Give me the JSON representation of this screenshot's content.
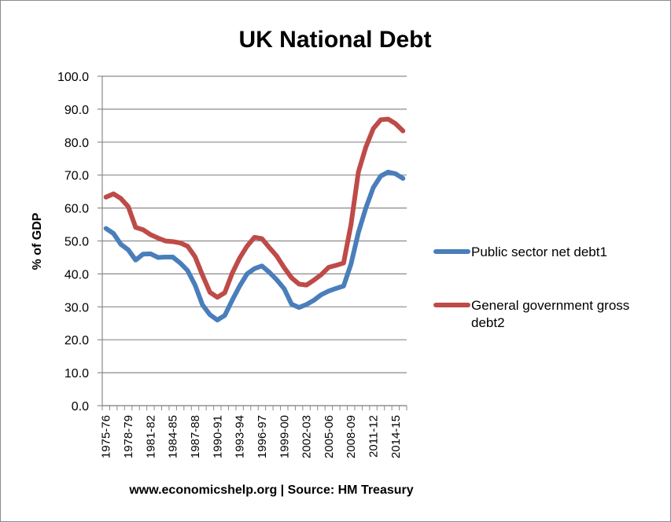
{
  "chart_data": {
    "type": "line",
    "title": "UK National Debt",
    "ylabel": "% of GDP",
    "xlabel": "",
    "ylim": [
      0,
      100
    ],
    "ytick_labels": [
      "0.0",
      "10.0",
      "20.0",
      "30.0",
      "40.0",
      "50.0",
      "60.0",
      "70.0",
      "80.0",
      "90.0",
      "100.0"
    ],
    "grid": "horizontal",
    "legend_position": "right",
    "x": [
      "1975-76",
      "1976-77",
      "1977-78",
      "1978-79",
      "1979-80",
      "1980-81",
      "1981-82",
      "1982-83",
      "1983-84",
      "1984-85",
      "1985-86",
      "1986-87",
      "1987-88",
      "1988-89",
      "1989-90",
      "1990-91",
      "1991-92",
      "1992-93",
      "1993-94",
      "1994-95",
      "1995-96",
      "1996-97",
      "1997-98",
      "1998-99",
      "1999-00",
      "2000-01",
      "2001-02",
      "2002-03",
      "2003-04",
      "2004-05",
      "2005-06",
      "2006-07",
      "2007-08",
      "2008-09",
      "2009-10",
      "2010-11",
      "2011-12",
      "2012-13",
      "2013-14",
      "2014-15",
      "2015-16"
    ],
    "x_tick_labels": [
      "1975-76",
      "1978-79",
      "1981-82",
      "1984-85",
      "1987-88",
      "1990-91",
      "1993-94",
      "1996-97",
      "1999-00",
      "2002-03",
      "2005-06",
      "2008-09",
      "2011-12",
      "2014-15"
    ],
    "series": [
      {
        "name": "Public sector net debt1",
        "color": "#4a7ebb",
        "values": [
          53.8,
          52.3,
          49.0,
          47.3,
          44.2,
          46.0,
          46.1,
          45.0,
          45.1,
          45.1,
          43.3,
          41.0,
          36.6,
          30.6,
          27.6,
          26.0,
          27.4,
          32.0,
          36.3,
          40.0,
          41.6,
          42.4,
          40.5,
          38.2,
          35.5,
          30.8,
          29.8,
          30.7,
          32.0,
          33.7,
          34.8,
          35.6,
          36.3,
          43.0,
          52.6,
          60.0,
          66.2,
          69.7,
          70.9,
          70.4,
          69.0
        ]
      },
      {
        "name": "General government gross debt2",
        "color": "#be4b48",
        "values": [
          63.3,
          64.3,
          62.9,
          60.4,
          54.1,
          53.4,
          51.9,
          50.9,
          50.0,
          49.8,
          49.4,
          48.4,
          45.2,
          39.6,
          34.4,
          32.9,
          34.3,
          40.2,
          44.8,
          48.4,
          51.1,
          50.7,
          48.0,
          45.4,
          41.9,
          38.8,
          36.9,
          36.6,
          38.1,
          39.8,
          42.0,
          42.6,
          43.3,
          55.0,
          71.0,
          78.5,
          84.1,
          86.8,
          87.0,
          85.6,
          83.4
        ]
      }
    ]
  },
  "source": "www.economicshelp.org | Source: HM Treasury"
}
